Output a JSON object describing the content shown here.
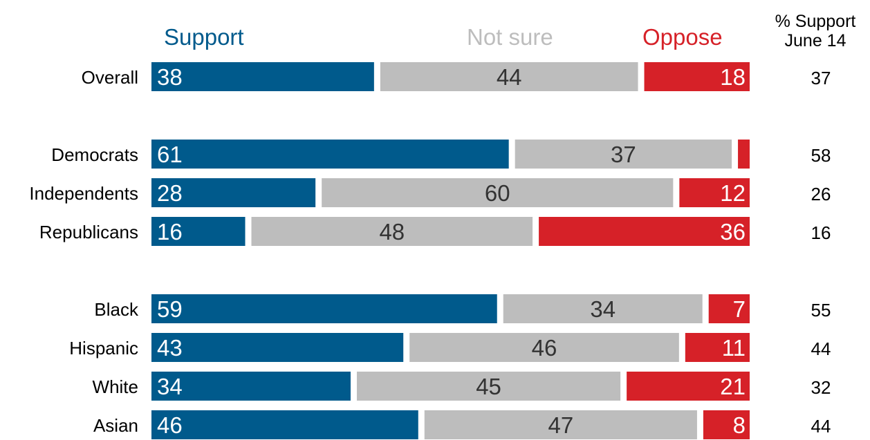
{
  "headers": {
    "support": "Support",
    "not_sure": "Not sure",
    "oppose": "Oppose",
    "prior_line1": "% Support",
    "prior_line2": "June 14"
  },
  "colors": {
    "support": "#005a8c",
    "not_sure": "#bdbdbd",
    "oppose": "#d62128"
  },
  "chart_data": {
    "type": "bar",
    "orientation": "horizontal-stacked-100",
    "title": "",
    "xlabel": "",
    "ylabel": "",
    "categories": [
      "Overall",
      "Democrats",
      "Independents",
      "Republicans",
      "Black",
      "Hispanic",
      "White",
      "Asian"
    ],
    "series": [
      {
        "name": "Support",
        "values": [
          38,
          61,
          28,
          16,
          59,
          43,
          34,
          46
        ]
      },
      {
        "name": "Not sure",
        "values": [
          44,
          37,
          60,
          48,
          34,
          46,
          45,
          47
        ]
      },
      {
        "name": "Oppose",
        "values": [
          18,
          2,
          12,
          36,
          7,
          11,
          21,
          8
        ]
      }
    ],
    "data_labels": {
      "Support": [
        "38",
        "61",
        "28",
        "16",
        "59",
        "43",
        "34",
        "46"
      ],
      "Not sure": [
        "44",
        "37",
        "60",
        "48",
        "34",
        "46",
        "45",
        "47"
      ],
      "Oppose": [
        "18",
        "",
        "12",
        "36",
        "7",
        "11",
        "21",
        "8"
      ]
    },
    "prior_support": {
      "header": [
        "% Support",
        "June 14"
      ],
      "values": [
        "37",
        "58",
        "26",
        "16",
        "55",
        "44",
        "32",
        "44"
      ]
    },
    "groups": [
      [
        "Overall"
      ],
      [
        "Democrats",
        "Independents",
        "Republicans"
      ],
      [
        "Black",
        "Hispanic",
        "White",
        "Asian"
      ]
    ],
    "xlim": [
      0,
      100
    ],
    "grid": false,
    "legend": "top"
  }
}
